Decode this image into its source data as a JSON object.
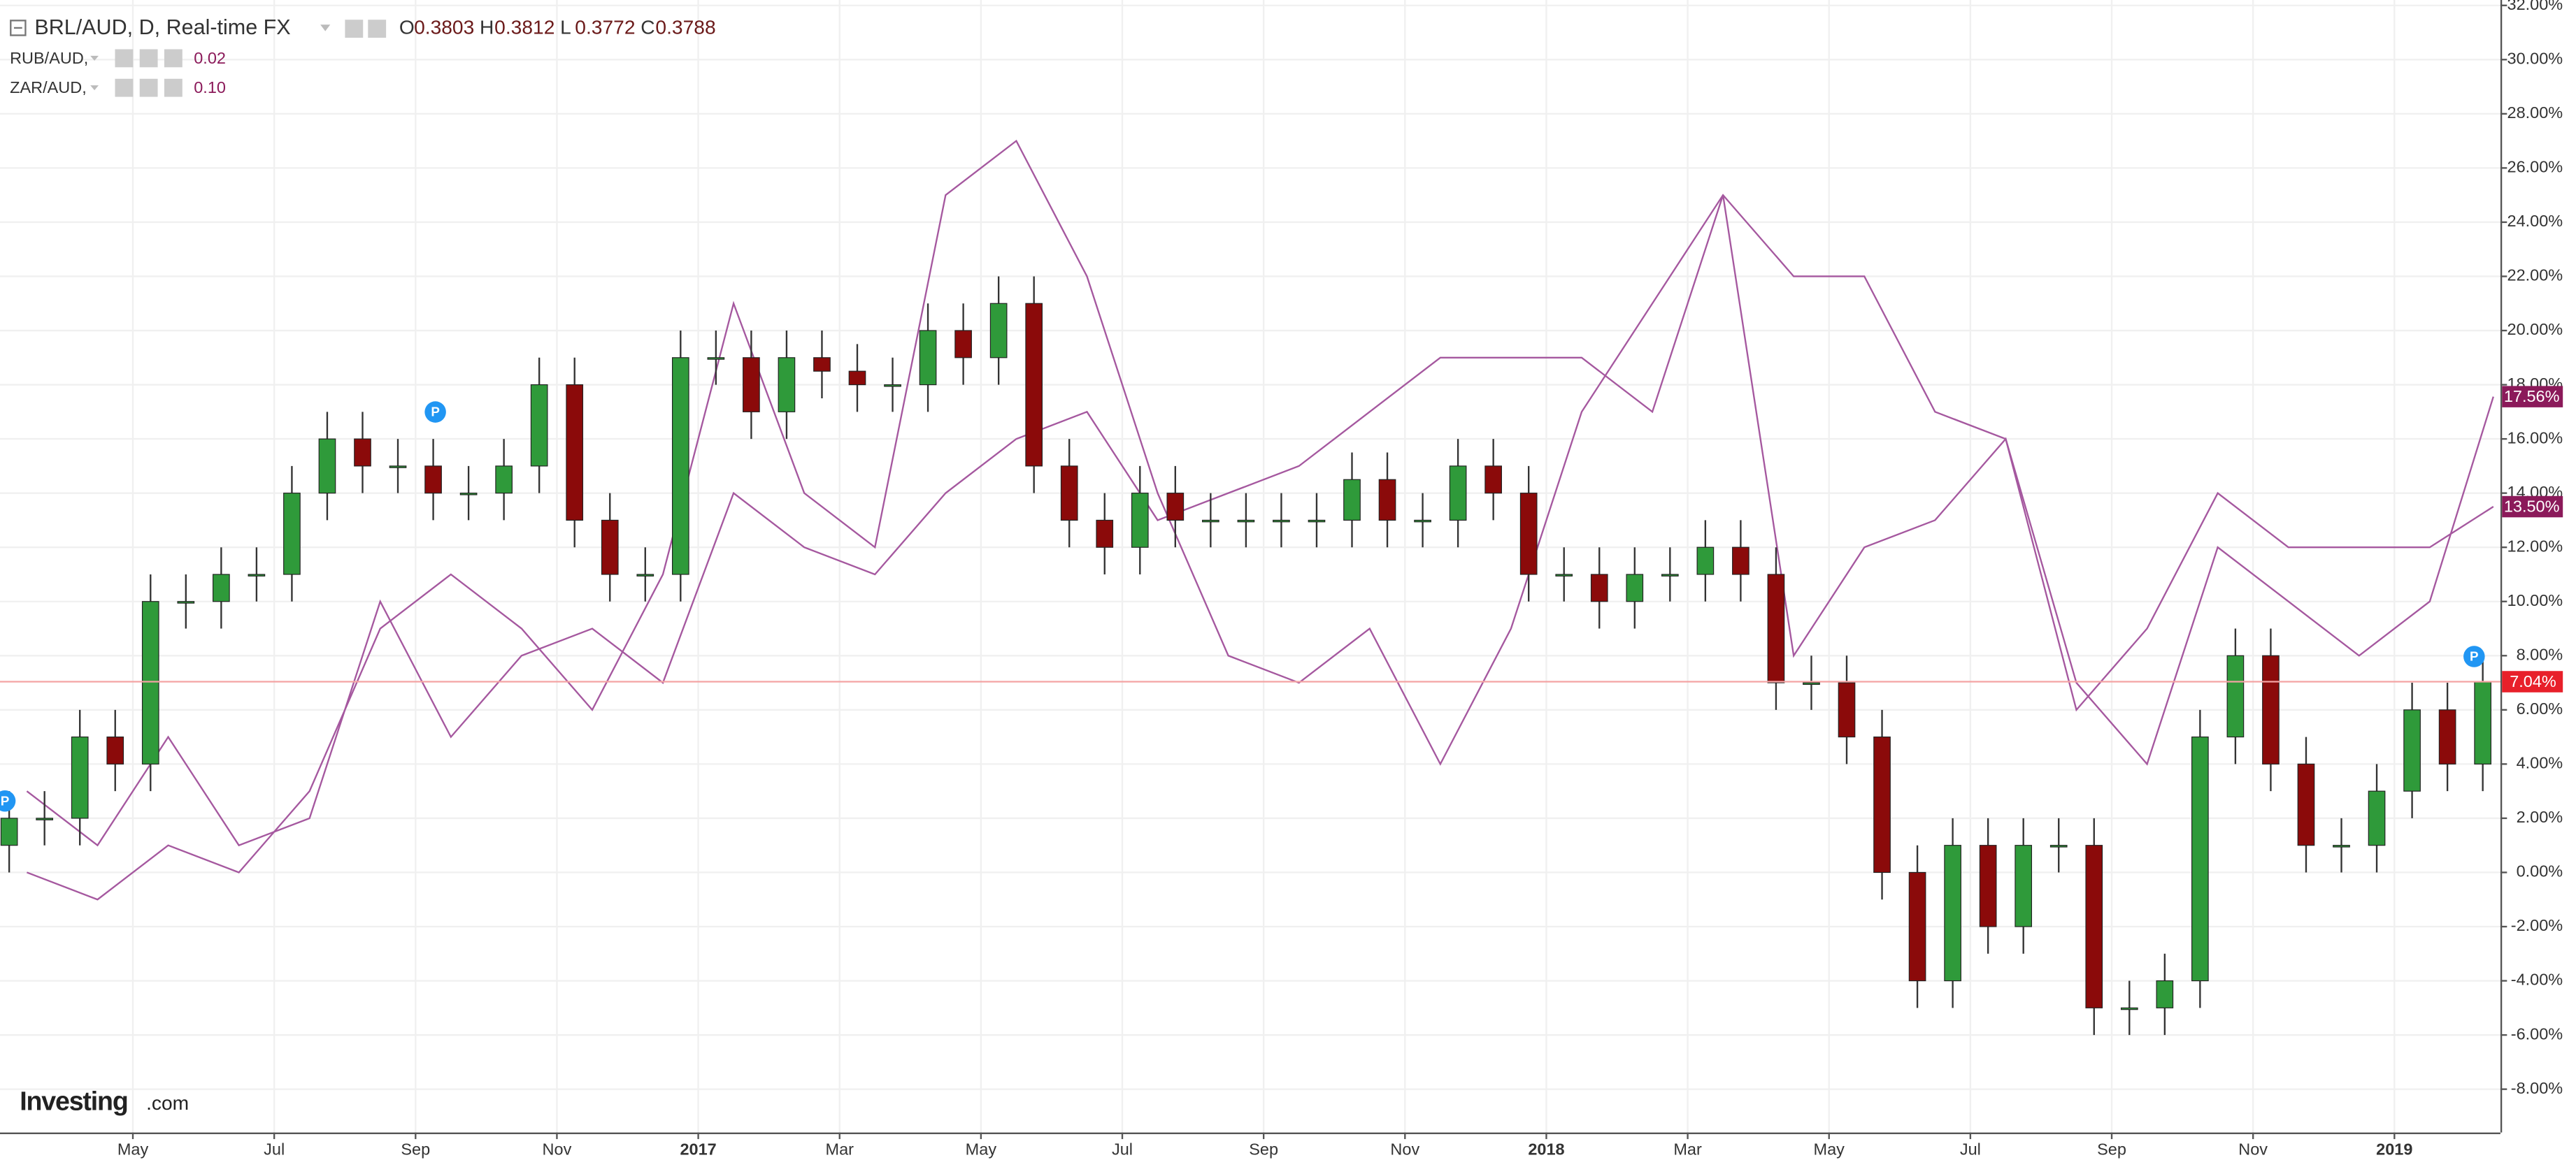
{
  "chart_data": {
    "type": "candlestick",
    "title": "BRL/AUD, D, Real-time FX",
    "ohlc_header": [
      {
        "letter": "O",
        "value": "0.3803"
      },
      {
        "letter": "H",
        "value": "0.3812"
      },
      {
        "letter": "L",
        "value": "0.3772"
      },
      {
        "letter": "C",
        "value": "0.3788"
      }
    ],
    "up_color": "#2f9a3a",
    "down_color": "#8b0a0a",
    "x": [
      0.25,
      0.75,
      1.25,
      1.75,
      2.25,
      2.75,
      3.25,
      3.75,
      4.25,
      4.75,
      5.25,
      5.75,
      6.25,
      6.75,
      7.25,
      7.75,
      8.25,
      8.75,
      9.25,
      9.75,
      10.25,
      10.75,
      11.25,
      11.75,
      12.25,
      12.75,
      13.25,
      13.75,
      14.25,
      14.75,
      15.25,
      15.75,
      16.25,
      16.75,
      17.25,
      17.75,
      18.25,
      18.75,
      19.25,
      19.75,
      20.25,
      20.75,
      21.25,
      21.75,
      22.25,
      22.75,
      23.25,
      23.75,
      24.25,
      24.75,
      25.25,
      25.75,
      26.25,
      26.75,
      27.25,
      27.75,
      28.25,
      28.75,
      29.25,
      29.75,
      30.25,
      30.75,
      31.25,
      31.75,
      32.25,
      32.75,
      33.25,
      33.75,
      34.25,
      34.75,
      35.25
    ],
    "open": [
      1,
      2,
      2,
      5,
      4,
      10,
      10,
      11,
      11,
      14,
      16,
      15,
      15,
      14,
      14,
      15,
      18,
      13,
      11,
      11,
      19,
      19,
      17,
      19,
      18.5,
      18,
      18,
      20,
      19,
      21,
      15,
      13,
      12,
      14,
      13,
      13,
      13,
      13,
      13,
      14.5,
      13,
      13,
      15,
      14,
      11,
      11,
      10,
      11,
      11,
      12,
      11,
      7,
      7,
      5,
      0,
      -4,
      1,
      -2,
      1,
      1,
      -5,
      -5,
      -4,
      5,
      8,
      4,
      1,
      1,
      3,
      6,
      4
    ],
    "high": [
      3,
      3,
      6,
      6,
      11,
      11,
      12,
      12,
      15,
      17,
      17,
      16,
      16,
      15,
      16,
      19,
      19,
      14,
      12,
      20,
      20,
      20,
      20,
      20,
      19.5,
      19,
      21,
      21,
      22,
      22,
      16,
      14,
      15,
      15,
      14,
      14,
      14,
      14,
      15.5,
      15.5,
      14,
      16,
      16,
      15,
      12,
      12,
      12,
      12,
      13,
      13,
      12,
      8,
      8,
      6,
      1,
      2,
      2,
      2,
      2,
      2,
      -4,
      -3,
      6,
      9,
      9,
      5,
      2,
      4,
      7,
      7,
      8.04
    ],
    "low": [
      0,
      1,
      1,
      3,
      3,
      9,
      9,
      10,
      10,
      13,
      14,
      14,
      13,
      13,
      13,
      14,
      12,
      10,
      10,
      10,
      18,
      16,
      16,
      17.5,
      17,
      17,
      17,
      18,
      18,
      14,
      12,
      11,
      11,
      12,
      12,
      12,
      12,
      12,
      12,
      12,
      12,
      12,
      13,
      10,
      10,
      9,
      9,
      10,
      10,
      10,
      6,
      6,
      4,
      -1,
      -5,
      -5,
      -3,
      -3,
      0,
      -6,
      -6,
      -6,
      -5,
      4,
      3,
      0,
      0,
      0,
      2,
      3,
      3
    ],
    "close": [
      2,
      2,
      5,
      4,
      10,
      10,
      11,
      11,
      14,
      16,
      15,
      15,
      14,
      14,
      15,
      18,
      13,
      11,
      11,
      19,
      19,
      17,
      19,
      18.5,
      18,
      18,
      20,
      19,
      21,
      15,
      13,
      12,
      14,
      13,
      13,
      13,
      13,
      13,
      14.5,
      13,
      13,
      15,
      14,
      11,
      11,
      10,
      11,
      11,
      12,
      11,
      7,
      7,
      5,
      0,
      -4,
      1,
      -2,
      1,
      1,
      -5,
      -5,
      -4,
      5,
      8,
      4,
      1,
      1,
      3,
      6,
      4,
      7.04
    ],
    "price_line": {
      "value": 7.04,
      "label": "7.04%",
      "color": "#e8202a"
    },
    "series": [
      {
        "name": "RUB/AUD,",
        "param": "0.02",
        "color": "#a5589f",
        "badge_color": "#8b1a5a",
        "last": {
          "value": 17.56,
          "label": "17.56%"
        },
        "x": [
          0.5,
          1.5,
          2.5,
          3.5,
          4.5,
          5.5,
          6.5,
          7.5,
          8.5,
          9.5,
          10.5,
          11.5,
          12.5,
          13.5,
          14.5,
          15.5,
          16.5,
          17.5,
          18.5,
          19.5,
          20.5,
          21.5,
          22.5,
          23.5,
          24.5,
          25.5,
          26.5,
          27.5,
          28.5,
          29.5,
          30.5,
          31.5,
          32.5,
          33.5,
          34.5,
          35.4
        ],
        "values": [
          0,
          -1,
          1,
          0,
          3,
          9,
          11,
          9,
          6,
          11,
          21,
          14,
          12,
          25,
          27,
          22,
          14,
          8,
          7,
          9,
          4,
          9,
          17,
          21,
          25,
          22,
          22,
          17,
          16,
          7,
          4,
          12,
          10,
          8,
          10,
          17.56
        ]
      },
      {
        "name": "ZAR/AUD,",
        "param": "0.10",
        "color": "#a5589f",
        "badge_color": "#8b1a5a",
        "last": {
          "value": 13.5,
          "label": "13.50%"
        },
        "x": [
          0.5,
          1.5,
          2.5,
          3.5,
          4.5,
          5.5,
          6.5,
          7.5,
          8.5,
          9.5,
          10.5,
          11.5,
          12.5,
          13.5,
          14.5,
          15.5,
          16.5,
          17.5,
          18.5,
          19.5,
          20.5,
          21.5,
          22.5,
          23.5,
          24.5,
          25.5,
          26.5,
          27.5,
          28.5,
          29.5,
          30.5,
          31.5,
          32.5,
          33.5,
          34.5,
          35.4
        ],
        "values": [
          3,
          1,
          5,
          1,
          2,
          10,
          5,
          8,
          9,
          7,
          14,
          12,
          11,
          14,
          16,
          17,
          13,
          14,
          15,
          17,
          19,
          19,
          19,
          17,
          25,
          8,
          12,
          13,
          16,
          6,
          9,
          14,
          12,
          12,
          12,
          13.5
        ]
      }
    ],
    "xlim": [
      0.12,
      35.5
    ],
    "xticks": [
      {
        "value": 2,
        "label": "May"
      },
      {
        "value": 4,
        "label": "Jul"
      },
      {
        "value": 6,
        "label": "Sep"
      },
      {
        "value": 8,
        "label": "Nov"
      },
      {
        "value": 10,
        "label": "2017"
      },
      {
        "value": 12,
        "label": "Mar"
      },
      {
        "value": 14,
        "label": "May"
      },
      {
        "value": 16,
        "label": "Jul"
      },
      {
        "value": 18,
        "label": "Sep"
      },
      {
        "value": 20,
        "label": "Nov"
      },
      {
        "value": 22,
        "label": "2018"
      },
      {
        "value": 24,
        "label": "Mar"
      },
      {
        "value": 26,
        "label": "May"
      },
      {
        "value": 28,
        "label": "Jul"
      },
      {
        "value": 30,
        "label": "Sep"
      },
      {
        "value": 32,
        "label": "Nov"
      },
      {
        "value": 34,
        "label": "2019"
      }
    ],
    "ylim": [
      -9.6,
      32.2
    ],
    "yticks": [
      {
        "value": -8,
        "label": "-8.00%"
      },
      {
        "value": -6,
        "label": "-6.00%"
      },
      {
        "value": -4,
        "label": "-4.00%"
      },
      {
        "value": -2,
        "label": "-2.00%"
      },
      {
        "value": 0,
        "label": "0.00%"
      },
      {
        "value": 2,
        "label": "2.00%"
      },
      {
        "value": 4,
        "label": "4.00%"
      },
      {
        "value": 6,
        "label": "6.00%"
      },
      {
        "value": 8,
        "label": "8.00%"
      },
      {
        "value": 10,
        "label": "10.00%"
      },
      {
        "value": 12,
        "label": "12.00%"
      },
      {
        "value": 14,
        "label": "14.00%"
      },
      {
        "value": 16,
        "label": "16.00%"
      },
      {
        "value": 18,
        "label": "18.00%"
      },
      {
        "value": 20,
        "label": "20.00%"
      },
      {
        "value": 22,
        "label": "22.00%"
      },
      {
        "value": 24,
        "label": "24.00%"
      },
      {
        "value": 26,
        "label": "26.00%"
      },
      {
        "value": 28,
        "label": "28.00%"
      },
      {
        "value": 30,
        "label": "30.00%"
      },
      {
        "value": 32,
        "label": "32.00%"
      }
    ],
    "grid": true,
    "event_marker": "P",
    "logo": {
      "name": "Investing",
      "suffix": ".com"
    }
  }
}
